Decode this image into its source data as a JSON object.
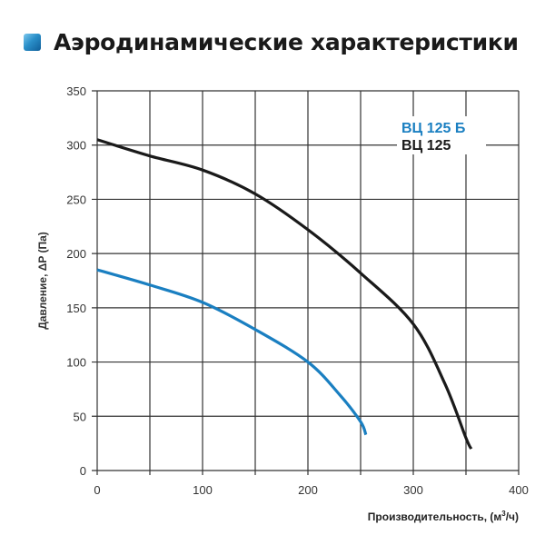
{
  "header": {
    "title": "Аэродинамические характеристики",
    "icon": "blue-square-icon"
  },
  "chart_data": {
    "type": "line",
    "title": "Аэродинамические характеристики",
    "xlabel": "Производительность, (м³/ч)",
    "xlabel_main": "Производительность, (м",
    "xlabel_sup": "3",
    "xlabel_tail": "/ч)",
    "ylabel": "Давление, ΔP (Па)",
    "xlim": [
      0,
      400
    ],
    "ylim": [
      0,
      350
    ],
    "xticks": [
      0,
      100,
      200,
      300,
      400
    ],
    "yticks": [
      0,
      50,
      100,
      150,
      200,
      250,
      300,
      350
    ],
    "x_gridstep": 50,
    "y_gridstep": 50,
    "grid": true,
    "legend_position": "upper right",
    "series": [
      {
        "name": "ВЦ 125 Б",
        "color": "#1a7fc1",
        "x": [
          0,
          50,
          100,
          150,
          200,
          230,
          250,
          255
        ],
        "y": [
          185,
          171,
          155,
          130,
          100,
          70,
          45,
          33
        ]
      },
      {
        "name": "ВЦ 125",
        "color": "#1a1a1a",
        "x": [
          0,
          50,
          100,
          150,
          200,
          250,
          300,
          330,
          350,
          355
        ],
        "y": [
          305,
          290,
          277,
          255,
          222,
          182,
          135,
          80,
          30,
          20
        ]
      }
    ]
  }
}
